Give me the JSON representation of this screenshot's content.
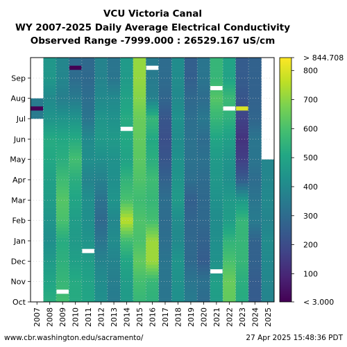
{
  "chart_data": {
    "type": "heatmap",
    "title_lines": [
      "VCU Victoria Canal",
      "WY 2007-2025 Daily Average Electrical Conductivity",
      "Observed Range -7999.000 : 26529.167 uS/cm"
    ],
    "xlabel": "",
    "ylabel": "",
    "x_categories": [
      "2007",
      "2008",
      "2009",
      "2010",
      "2011",
      "2012",
      "2013",
      "2014",
      "2015",
      "2016",
      "2017",
      "2018",
      "2019",
      "2020",
      "2021",
      "2022",
      "2023",
      "2024",
      "2025"
    ],
    "y_categories": [
      "Oct",
      "Nov",
      "Dec",
      "Jan",
      "Feb",
      "Mar",
      "Apr",
      "May",
      "Jun",
      "Jul",
      "Aug",
      "Sep"
    ],
    "colormap": "viridis",
    "colorbar": {
      "min": 3.0,
      "max": 844.708,
      "ticks": [
        100,
        200,
        300,
        400,
        500,
        600,
        700,
        800
      ],
      "min_label": "< 3.000",
      "max_label": "> 844.708"
    },
    "grid": true,
    "monthly_values": [
      [
        null,
        530,
        590,
        520,
        500,
        420,
        350,
        460,
        560,
        540,
        330,
        420,
        350,
        300,
        470,
        640,
        520,
        250,
        380
      ],
      [
        null,
        500,
        560,
        520,
        490,
        410,
        360,
        470,
        590,
        560,
        330,
        430,
        330,
        320,
        480,
        650,
        530,
        250,
        390
      ],
      [
        null,
        460,
        540,
        480,
        470,
        380,
        380,
        500,
        640,
        720,
        330,
        440,
        290,
        250,
        430,
        600,
        560,
        270,
        400
      ],
      [
        null,
        420,
        520,
        460,
        440,
        330,
        410,
        580,
        600,
        720,
        310,
        400,
        290,
        270,
        420,
        550,
        560,
        270,
        410
      ],
      [
        null,
        440,
        600,
        470,
        420,
        290,
        390,
        760,
        610,
        590,
        300,
        410,
        280,
        290,
        410,
        470,
        560,
        350,
        380
      ],
      [
        null,
        470,
        620,
        500,
        420,
        320,
        440,
        600,
        580,
        560,
        310,
        460,
        260,
        290,
        430,
        460,
        460,
        330,
        400
      ],
      [
        null,
        480,
        580,
        530,
        380,
        370,
        420,
        550,
        610,
        580,
        270,
        440,
        310,
        300,
        450,
        420,
        250,
        300,
        390
      ],
      [
        null,
        510,
        530,
        590,
        420,
        420,
        430,
        490,
        630,
        530,
        230,
        430,
        320,
        320,
        460,
        440,
        160,
        330,
        null
      ],
      [
        null,
        520,
        510,
        520,
        400,
        460,
        460,
        510,
        640,
        510,
        210,
        410,
        320,
        300,
        500,
        480,
        130,
        330,
        null
      ],
      [
        350,
        440,
        440,
        440,
        330,
        440,
        430,
        520,
        650,
        560,
        230,
        430,
        310,
        340,
        560,
        540,
        170,
        280,
        null
      ],
      [
        null,
        400,
        360,
        350,
        310,
        400,
        400,
        490,
        690,
        370,
        280,
        400,
        290,
        300,
        620,
        570,
        230,
        270,
        null
      ],
      [
        null,
        450,
        390,
        300,
        290,
        380,
        330,
        460,
        710,
        350,
        300,
        410,
        260,
        330,
        560,
        490,
        250,
        270,
        null
      ]
    ],
    "missing_or_extreme_markers": [
      {
        "year": "2009",
        "month": "Oct",
        "value": "> 844.708"
      },
      {
        "year": "2011",
        "month": "Dec",
        "value": "> 844.708"
      },
      {
        "year": "2021",
        "month": "Nov",
        "value": "> 844.708"
      },
      {
        "year": "2014",
        "month": "Jun",
        "value": "> 844.708"
      },
      {
        "year": "2021",
        "month": "Aug",
        "value": "> 844.708"
      },
      {
        "year": "2022",
        "month": "Jul",
        "value": "> 844.708"
      },
      {
        "year": "2023",
        "month": "Jul",
        "value": 800
      },
      {
        "year": "2016",
        "month": "Sep",
        "value": "> 844.708"
      },
      {
        "year": "2010",
        "month": "Sep",
        "value": "< 3.000"
      },
      {
        "year": "2007",
        "month": "Jul",
        "value": "< 3.000"
      }
    ]
  },
  "footer": {
    "left": "www.cbr.washington.edu/sacramento/",
    "right": "27 Apr 2025 15:48:36 PDT"
  }
}
